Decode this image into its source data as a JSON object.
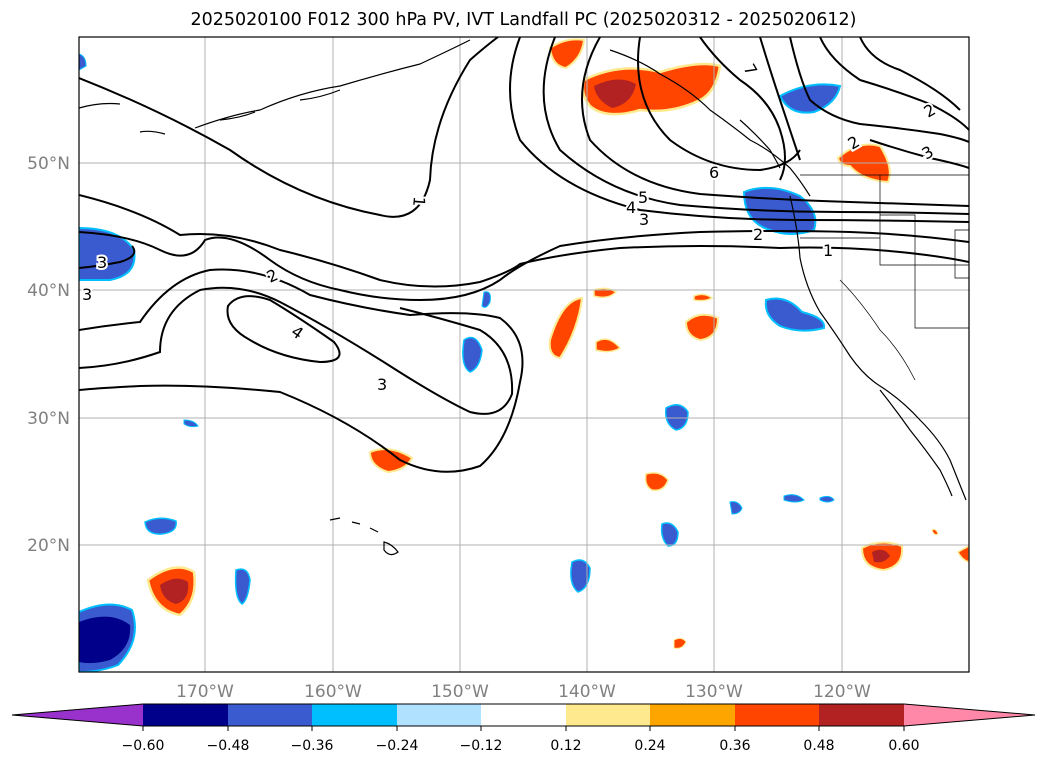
{
  "title": "2025020100 F012 300 hPa PV, IVT Landfall PC (2025020312 - 2025020612)",
  "map": {
    "lat_labels": [
      "50°N",
      "40°N",
      "30°N",
      "20°N"
    ],
    "lon_labels": [
      "170°W",
      "160°W",
      "150°W",
      "140°W",
      "130°W",
      "120°W"
    ],
    "contour_labels": [
      "1",
      "2",
      "3",
      "4",
      "5",
      "6",
      "7",
      "1",
      "2",
      "3",
      "4",
      "2",
      "3",
      "2",
      "3",
      "3",
      "4"
    ]
  },
  "colorbar": {
    "ticks": [
      "−0.60",
      "−0.48",
      "−0.36",
      "−0.24",
      "−0.12",
      "0.12",
      "0.24",
      "0.36",
      "0.48",
      "0.60"
    ],
    "colors": [
      "#9932cc",
      "#00008b",
      "#3a5bcf",
      "#00bfff",
      "#b0e2ff",
      "#ffffff",
      "#ffe98e",
      "#ffa500",
      "#ff4500",
      "#b22222",
      "#ff88a8"
    ]
  }
}
